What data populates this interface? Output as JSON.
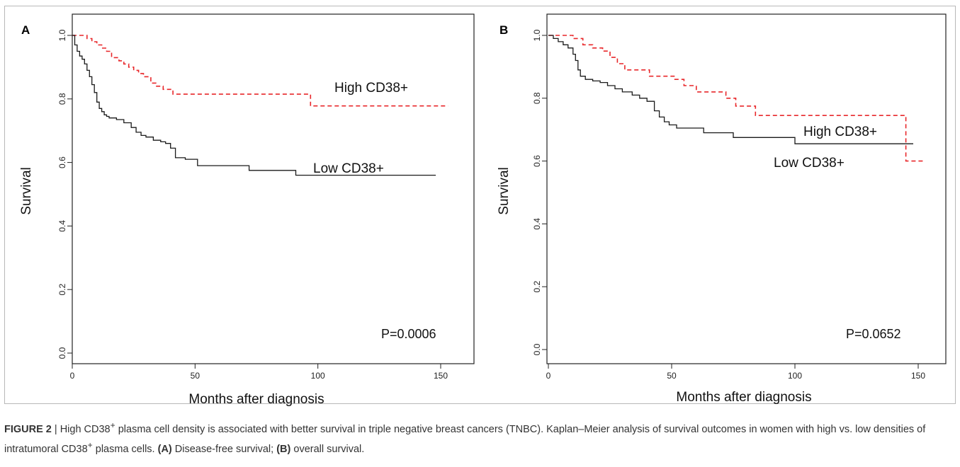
{
  "figure": {
    "caption": {
      "label": "FIGURE 2",
      "sep": " | ",
      "text_1": "High CD38",
      "sup_1": "+",
      "text_2": " plasma cell density is associated with better survival in triple negative breast cancers (TNBC). Kaplan–Meier analysis of survival outcomes in women with high vs. low densities of intratumoral CD38",
      "sup_2": "+",
      "text_3": " plasma cells. ",
      "a_ref": "(A)",
      "a_text": " Disease-free survival; ",
      "b_ref": "(B)",
      "b_text": " overall survival."
    }
  },
  "chart_data": [
    {
      "type": "line",
      "panel_label": "A",
      "xlabel": "Months after diagnosis",
      "ylabel": "Survival",
      "xlim": [
        0,
        155
      ],
      "ylim": [
        0,
        1.0
      ],
      "xticks": [
        0,
        50,
        100,
        150
      ],
      "yticks": [
        0.0,
        0.2,
        0.4,
        0.6,
        0.8,
        1.0
      ],
      "grid": false,
      "p_value": "P=0.0006",
      "series": [
        {
          "name": "High CD38+",
          "color": "#e8272a",
          "style": "dashed",
          "x": [
            0,
            5,
            6,
            8,
            10,
            12,
            14,
            16,
            19,
            21,
            23,
            25,
            27,
            29,
            32,
            34,
            37,
            41,
            65,
            70,
            96,
            97,
            153
          ],
          "y": [
            1.0,
            1.0,
            0.99,
            0.98,
            0.97,
            0.96,
            0.95,
            0.93,
            0.92,
            0.91,
            0.9,
            0.89,
            0.88,
            0.87,
            0.85,
            0.84,
            0.83,
            0.815,
            0.815,
            0.815,
            0.815,
            0.778,
            0.778
          ]
        },
        {
          "name": "Low CD38+",
          "color": "#1a1a1a",
          "style": "solid",
          "x": [
            0,
            1,
            2,
            3,
            4,
            5,
            6,
            7,
            8,
            9,
            10,
            11,
            12,
            13,
            14,
            15,
            16,
            18,
            21,
            24,
            26,
            28,
            30,
            33,
            36,
            38,
            40,
            42,
            46,
            51,
            63,
            72,
            80,
            91,
            148
          ],
          "y": [
            1.0,
            0.97,
            0.95,
            0.935,
            0.925,
            0.91,
            0.89,
            0.87,
            0.845,
            0.82,
            0.79,
            0.77,
            0.76,
            0.75,
            0.745,
            0.74,
            0.74,
            0.735,
            0.725,
            0.71,
            0.695,
            0.685,
            0.68,
            0.67,
            0.665,
            0.66,
            0.645,
            0.615,
            0.61,
            0.59,
            0.59,
            0.575,
            0.575,
            0.56,
            0.56
          ]
        }
      ]
    },
    {
      "type": "line",
      "panel_label": "B",
      "xlabel": "Months after diagnosis",
      "ylabel": "Survival",
      "xlim": [
        0,
        155
      ],
      "ylim": [
        0,
        1.0
      ],
      "xticks": [
        0,
        50,
        100,
        150
      ],
      "yticks": [
        0.0,
        0.2,
        0.4,
        0.6,
        0.8,
        1.0
      ],
      "grid": false,
      "p_value": "P=0.0652",
      "series": [
        {
          "name": "High CD38+",
          "color": "#e8272a",
          "style": "dashed",
          "x": [
            0,
            8,
            10,
            14,
            18,
            22,
            25,
            28,
            31,
            35,
            41,
            45,
            51,
            55,
            60,
            65,
            72,
            76,
            84,
            100,
            144,
            145,
            153
          ],
          "y": [
            1.0,
            1.0,
            0.99,
            0.97,
            0.96,
            0.95,
            0.93,
            0.91,
            0.89,
            0.89,
            0.87,
            0.87,
            0.86,
            0.84,
            0.82,
            0.82,
            0.8,
            0.775,
            0.745,
            0.745,
            0.745,
            0.6,
            0.6
          ]
        },
        {
          "name": "Low CD38+",
          "color": "#1a1a1a",
          "style": "solid",
          "x": [
            0,
            2,
            4,
            6,
            8,
            10,
            11,
            12,
            13,
            15,
            18,
            21,
            24,
            27,
            30,
            34,
            37,
            40,
            43,
            45,
            47,
            49,
            52,
            57,
            63,
            75,
            85,
            100,
            148
          ],
          "y": [
            1.0,
            0.99,
            0.98,
            0.97,
            0.96,
            0.94,
            0.92,
            0.89,
            0.87,
            0.86,
            0.855,
            0.85,
            0.84,
            0.83,
            0.82,
            0.81,
            0.8,
            0.79,
            0.76,
            0.74,
            0.725,
            0.715,
            0.705,
            0.705,
            0.69,
            0.675,
            0.675,
            0.655,
            0.655
          ]
        }
      ]
    }
  ]
}
